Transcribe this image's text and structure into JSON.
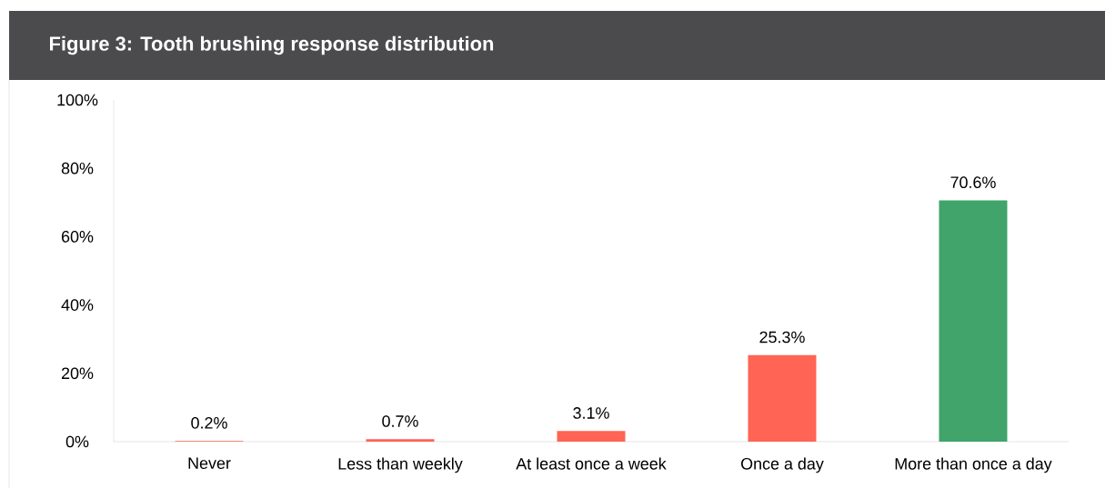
{
  "chart_data": {
    "type": "bar",
    "title": "Figure 3: Tooth brushing response distribution",
    "categories": [
      "Never",
      "Less than weekly",
      "At least once a week",
      "Once a day",
      "More than once a day"
    ],
    "values": [
      0.2,
      0.7,
      3.1,
      25.3,
      70.6
    ],
    "colors": [
      "#ff6454",
      "#ff6454",
      "#ff6454",
      "#ff6454",
      "#40a46b"
    ],
    "value_labels": [
      "0.2%",
      "0.7%",
      "3.1%",
      "25.3%",
      "70.6%"
    ],
    "ylim": [
      0,
      100
    ],
    "yticks": [
      {
        "value": 0,
        "label": "0%"
      },
      {
        "value": 20,
        "label": "20%"
      },
      {
        "value": 40,
        "label": "40%"
      },
      {
        "value": 60,
        "label": "60%"
      },
      {
        "value": 80,
        "label": "80%"
      },
      {
        "value": 100,
        "label": "100%"
      }
    ],
    "grid": false
  }
}
